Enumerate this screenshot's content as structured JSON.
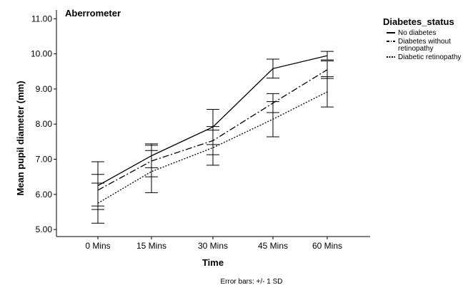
{
  "chart_data": {
    "type": "line",
    "title": "Aberrometer",
    "xlabel": "Time",
    "ylabel": "Mean pupil diameter (mm)",
    "categories": [
      "0 Mins",
      "15 Mins",
      "30 Mins",
      "45 Mins",
      "60 Mins"
    ],
    "ylim": [
      4.8,
      11.25
    ],
    "yticks": [
      5.0,
      6.0,
      7.0,
      8.0,
      9.0,
      10.0,
      11.0
    ],
    "ytick_labels": [
      "5.00",
      "6.00",
      "7.00",
      "8.00",
      "9.00",
      "10.00",
      "11.00"
    ],
    "grid": false,
    "legend": {
      "title": "Diabetes_status",
      "placement": "right",
      "entries": [
        {
          "label_lines": [
            "No diabetes"
          ],
          "style": "solid"
        },
        {
          "label_lines": [
            "Diabetes without",
            "retinopathy"
          ],
          "style": "dashdot"
        },
        {
          "label_lines": [
            "Diabetic retinopathy"
          ],
          "style": "dotted"
        }
      ]
    },
    "note": "Error bars: +/- 1 SD",
    "series": [
      {
        "style": "solid",
        "values": [
          6.25,
          7.1,
          7.92,
          9.58,
          9.95
        ],
        "sd": [
          0.68,
          0.34,
          0.5,
          0.27,
          0.12
        ]
      },
      {
        "style": "dashdot",
        "values": [
          6.12,
          6.95,
          7.53,
          8.6,
          9.55
        ],
        "sd": [
          0.45,
          0.45,
          0.4,
          0.27,
          0.25
        ]
      },
      {
        "style": "dotted",
        "values": [
          5.75,
          6.65,
          7.33,
          8.14,
          8.92
        ],
        "sd": [
          0.57,
          0.6,
          0.5,
          0.5,
          0.43
        ]
      }
    ]
  }
}
